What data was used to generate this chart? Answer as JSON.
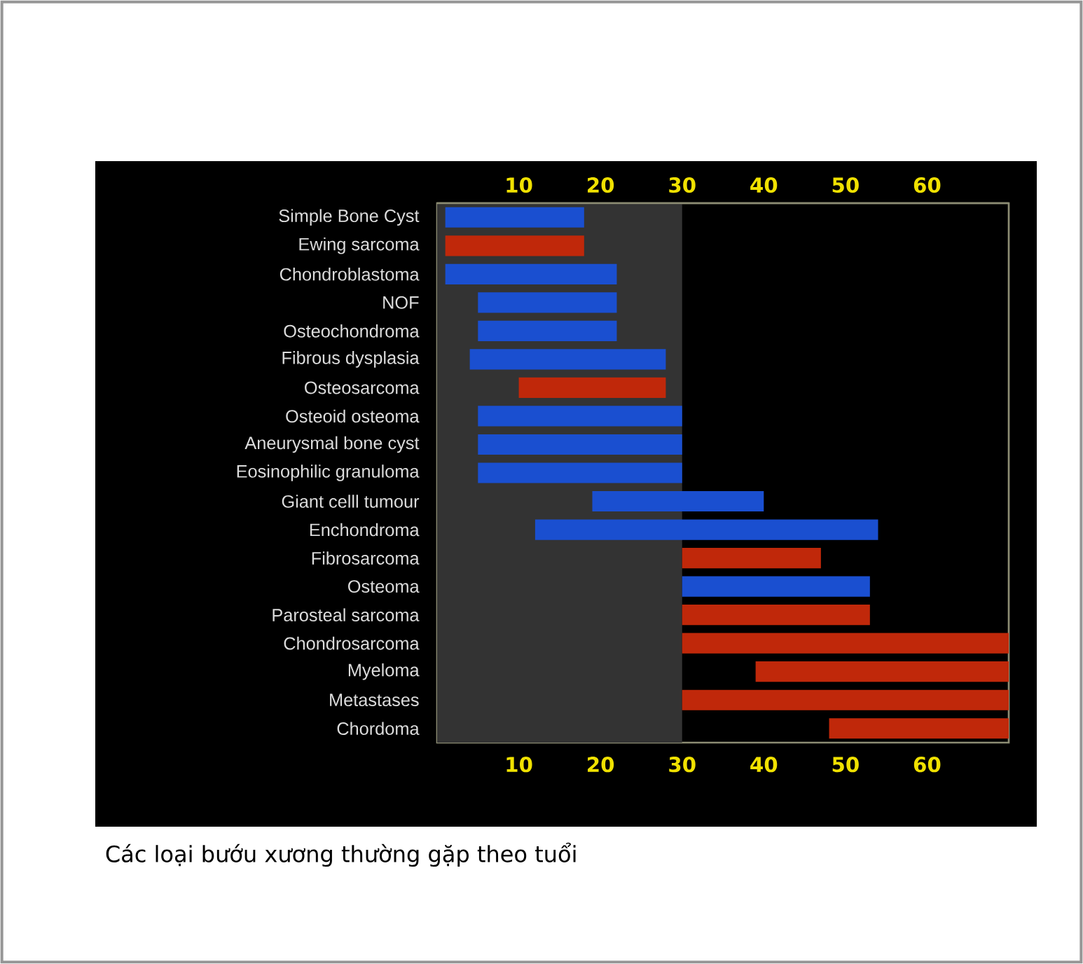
{
  "chart_data": {
    "type": "bar",
    "orientation": "horizontal",
    "categories": [
      "Simple Bone Cyst",
      "Ewing sarcoma",
      "Chondroblastoma",
      "NOF",
      "Osteochondroma",
      "Fibrous dysplasia",
      "Osteosarcoma",
      "Osteoid osteoma",
      "Aneurysmal bone cyst",
      "Eosinophilic granuloma",
      "Giant celll tumour",
      "Enchondroma",
      "Fibrosarcoma",
      "Osteoma",
      "Parosteal sarcoma",
      "Chondrosarcoma",
      "Myeloma",
      "Metastases",
      "Chordoma"
    ],
    "base": [
      1,
      1,
      1,
      5,
      5,
      4,
      10,
      5,
      5,
      5,
      19,
      12,
      30,
      30,
      30,
      30,
      39,
      30,
      48
    ],
    "values": [
      17,
      17,
      21,
      17,
      17,
      24,
      18,
      25,
      25,
      25,
      21,
      42,
      17,
      23,
      23,
      40,
      31,
      40,
      22
    ],
    "colors": [
      "#1a4fd0",
      "#c0280a",
      "#1a4fd0",
      "#1a4fd0",
      "#1a4fd0",
      "#1a4fd0",
      "#c0280a",
      "#1a4fd0",
      "#1a4fd0",
      "#1a4fd0",
      "#1a4fd0",
      "#1a4fd0",
      "#c0280a",
      "#1a4fd0",
      "#c0280a",
      "#c0280a",
      "#c0280a",
      "#c0280a",
      "#c0280a"
    ],
    "xlim": [
      0,
      70
    ],
    "xticks": [
      10,
      20,
      30,
      40,
      50,
      60
    ],
    "x2lim": [
      0,
      70
    ],
    "x2ticks": [
      10,
      20,
      30,
      40,
      50,
      60
    ],
    "bands": [
      {
        "axis": "x",
        "from": 0,
        "to": 30,
        "color": "#333333"
      }
    ],
    "annotations": [
      "Các loại bướu xương thường gặp theo tuổi"
    ]
  }
}
